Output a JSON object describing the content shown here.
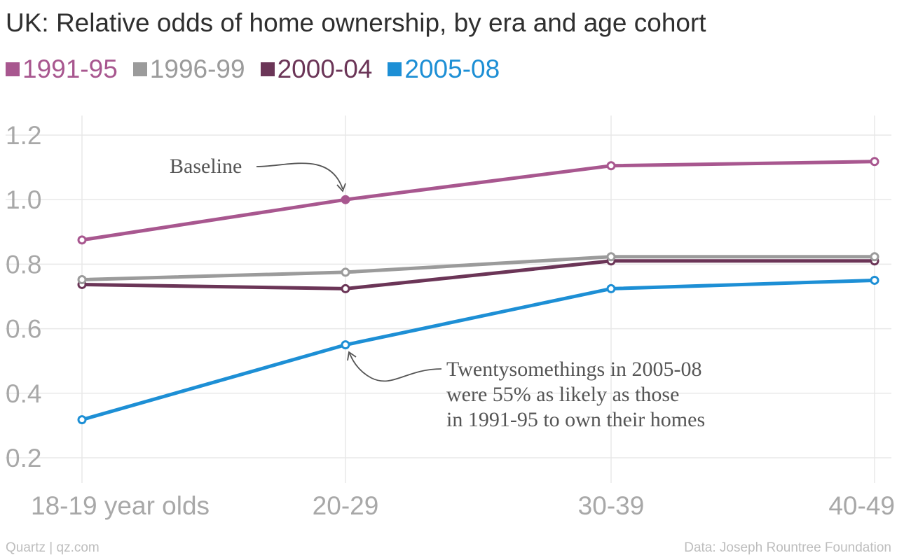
{
  "title": "UK: Relative odds of home ownership, by era and age cohort",
  "footer": {
    "source_left": "Quartz | qz.com",
    "source_right": "Data: Joseph Rountree Foundation"
  },
  "chart_data": {
    "type": "line",
    "categories": [
      "18-19 year olds",
      "20-29",
      "30-39",
      "40-49"
    ],
    "ylim": [
      0.1,
      1.3
    ],
    "yticks": [
      0.2,
      0.4,
      0.6,
      0.8,
      1.0,
      1.2
    ],
    "ytick_labels": [
      "0.2",
      "0.4",
      "0.6",
      "0.8",
      "1.0",
      "1.2"
    ],
    "grid": true,
    "legend_position": "top-left",
    "series": [
      {
        "name": "1991-95",
        "color": "#a8578f",
        "values": [
          0.875,
          1.0,
          1.105,
          1.118
        ]
      },
      {
        "name": "1996-99",
        "color": "#9b9b9b",
        "values": [
          0.752,
          0.775,
          0.823,
          0.823
        ]
      },
      {
        "name": "2000-04",
        "color": "#6b3557",
        "values": [
          0.737,
          0.724,
          0.81,
          0.81
        ]
      },
      {
        "name": "2005-08",
        "color": "#1d8fd5",
        "values": [
          0.318,
          0.55,
          0.724,
          0.75
        ]
      }
    ],
    "annotations": [
      {
        "text": [
          "Baseline"
        ],
        "series": "1991-95",
        "category": "20-29"
      },
      {
        "text": [
          "Twentysomethings in 2005-08",
          "were 55% as likely as those",
          "in 1991-95 to own their homes"
        ],
        "series": "2005-08",
        "category": "20-29"
      }
    ]
  }
}
